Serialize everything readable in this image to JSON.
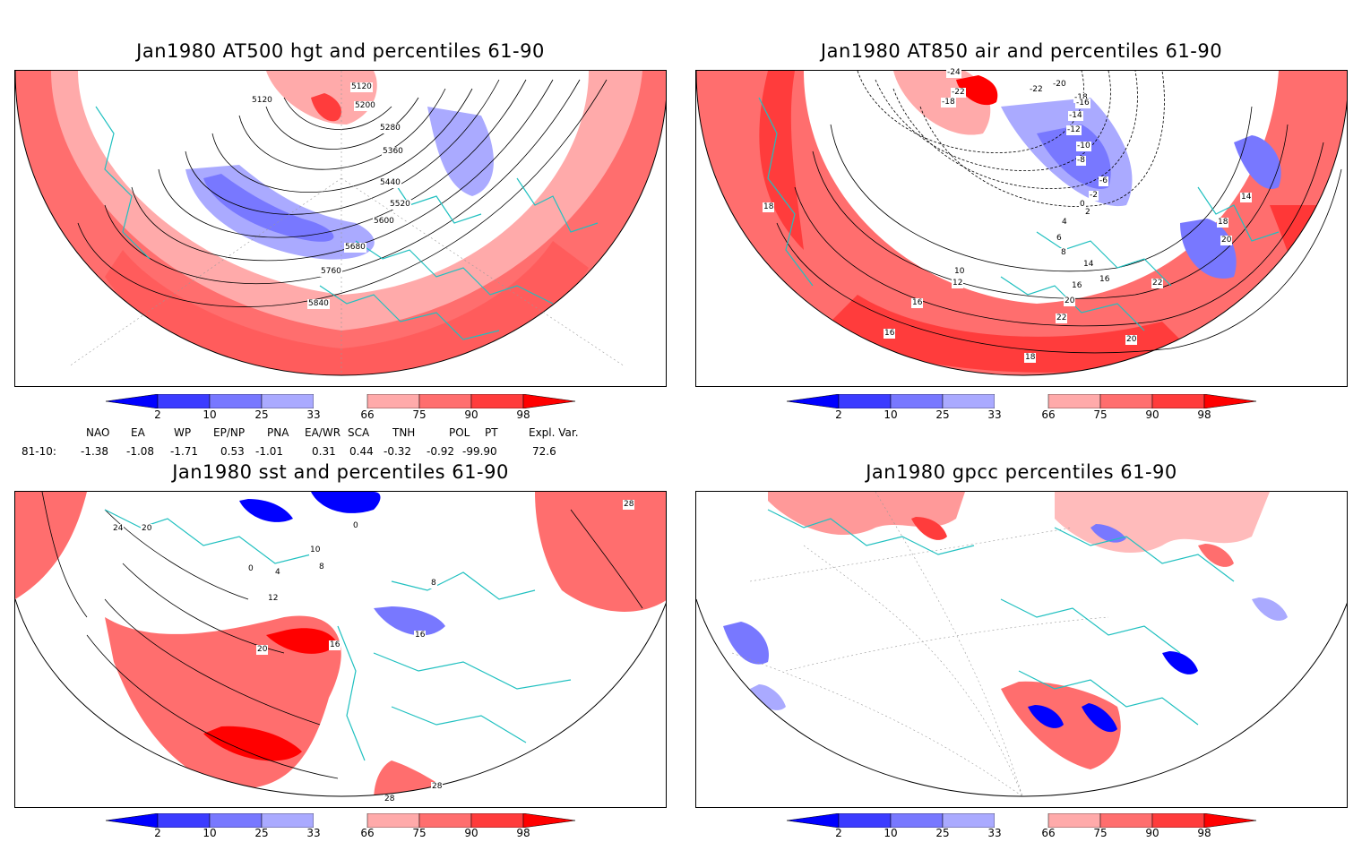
{
  "panels": [
    {
      "id": "p1",
      "title": "Jan1980 AT500 hgt and percentiles 61-90",
      "contour_labels": [
        "5120",
        "5120",
        "5200",
        "5280",
        "5360",
        "5440",
        "5520",
        "5600",
        "5680",
        "5760",
        "5840"
      ]
    },
    {
      "id": "p2",
      "title": "Jan1980 AT850 air and percentiles 61-90",
      "contour_labels": [
        "-24",
        "-22",
        "-22",
        "-20",
        "-18",
        "-18",
        "-16",
        "-14",
        "-12",
        "-10",
        "-8",
        "-6",
        "-2",
        "0",
        "2",
        "4",
        "6",
        "8",
        "10",
        "12",
        "14",
        "14",
        "16",
        "16",
        "16",
        "16",
        "18",
        "18",
        "18",
        "20",
        "20",
        "20",
        "22",
        "22"
      ]
    },
    {
      "id": "p3",
      "title": "Jan1980 sst and percentiles 61-90",
      "contour_labels": [
        "24",
        "20",
        "0",
        "4",
        "8",
        "12",
        "16",
        "20",
        "16",
        "28",
        "28",
        "28",
        "8",
        "0",
        "10"
      ]
    },
    {
      "id": "p4",
      "title": "Jan1980 gpcc percentiles 61-90",
      "contour_labels": []
    }
  ],
  "colorbar": {
    "tick_labels": [
      "2",
      "10",
      "25",
      "33",
      "66",
      "75",
      "90",
      "98"
    ],
    "colors": [
      "#0000ff",
      "#3c3cff",
      "#7878ff",
      "#aaaaff",
      "#ffffff",
      "#ffaaaa",
      "#ff6e6e",
      "#ff3c3c",
      "#ff0000"
    ]
  },
  "indices": {
    "headers": [
      "NAO",
      "EA",
      "WP",
      "EP/NP",
      "PNA",
      "EA/WR",
      "SCA",
      "TNH",
      "POL",
      "PT",
      "Expl. Var."
    ],
    "row_label": "81-10:",
    "values": [
      "-1.38",
      "-1.08",
      "-1.71",
      "0.53",
      "-1.01",
      "0.31",
      "0.44",
      "-0.32",
      "-0.92",
      "-99.90",
      "72.6"
    ]
  }
}
